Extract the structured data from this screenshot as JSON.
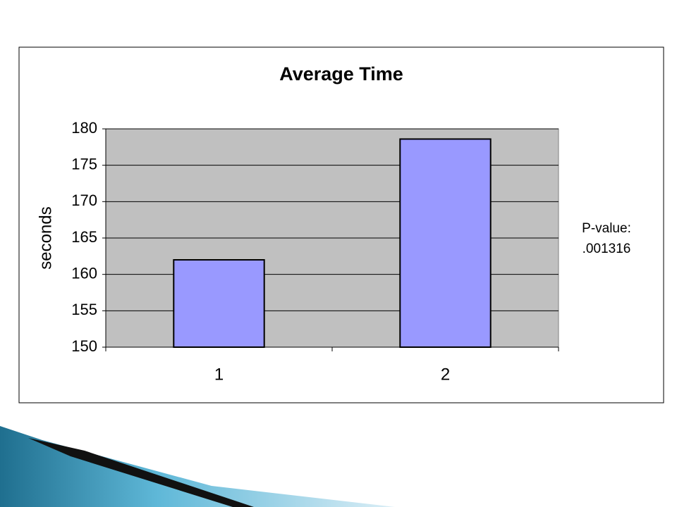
{
  "chart_data": {
    "type": "bar",
    "title": "Average Time",
    "y_label": "seconds",
    "categories": [
      "1",
      "2"
    ],
    "values": [
      162,
      178.6
    ],
    "color": "#9999ff",
    "ylim": [
      150,
      180
    ],
    "yticks": [
      150,
      155,
      160,
      165,
      170,
      175,
      180
    ],
    "grid": true,
    "plot_background": "#c0c0c0",
    "annotation": [
      "P-value:",
      ".001316"
    ]
  }
}
